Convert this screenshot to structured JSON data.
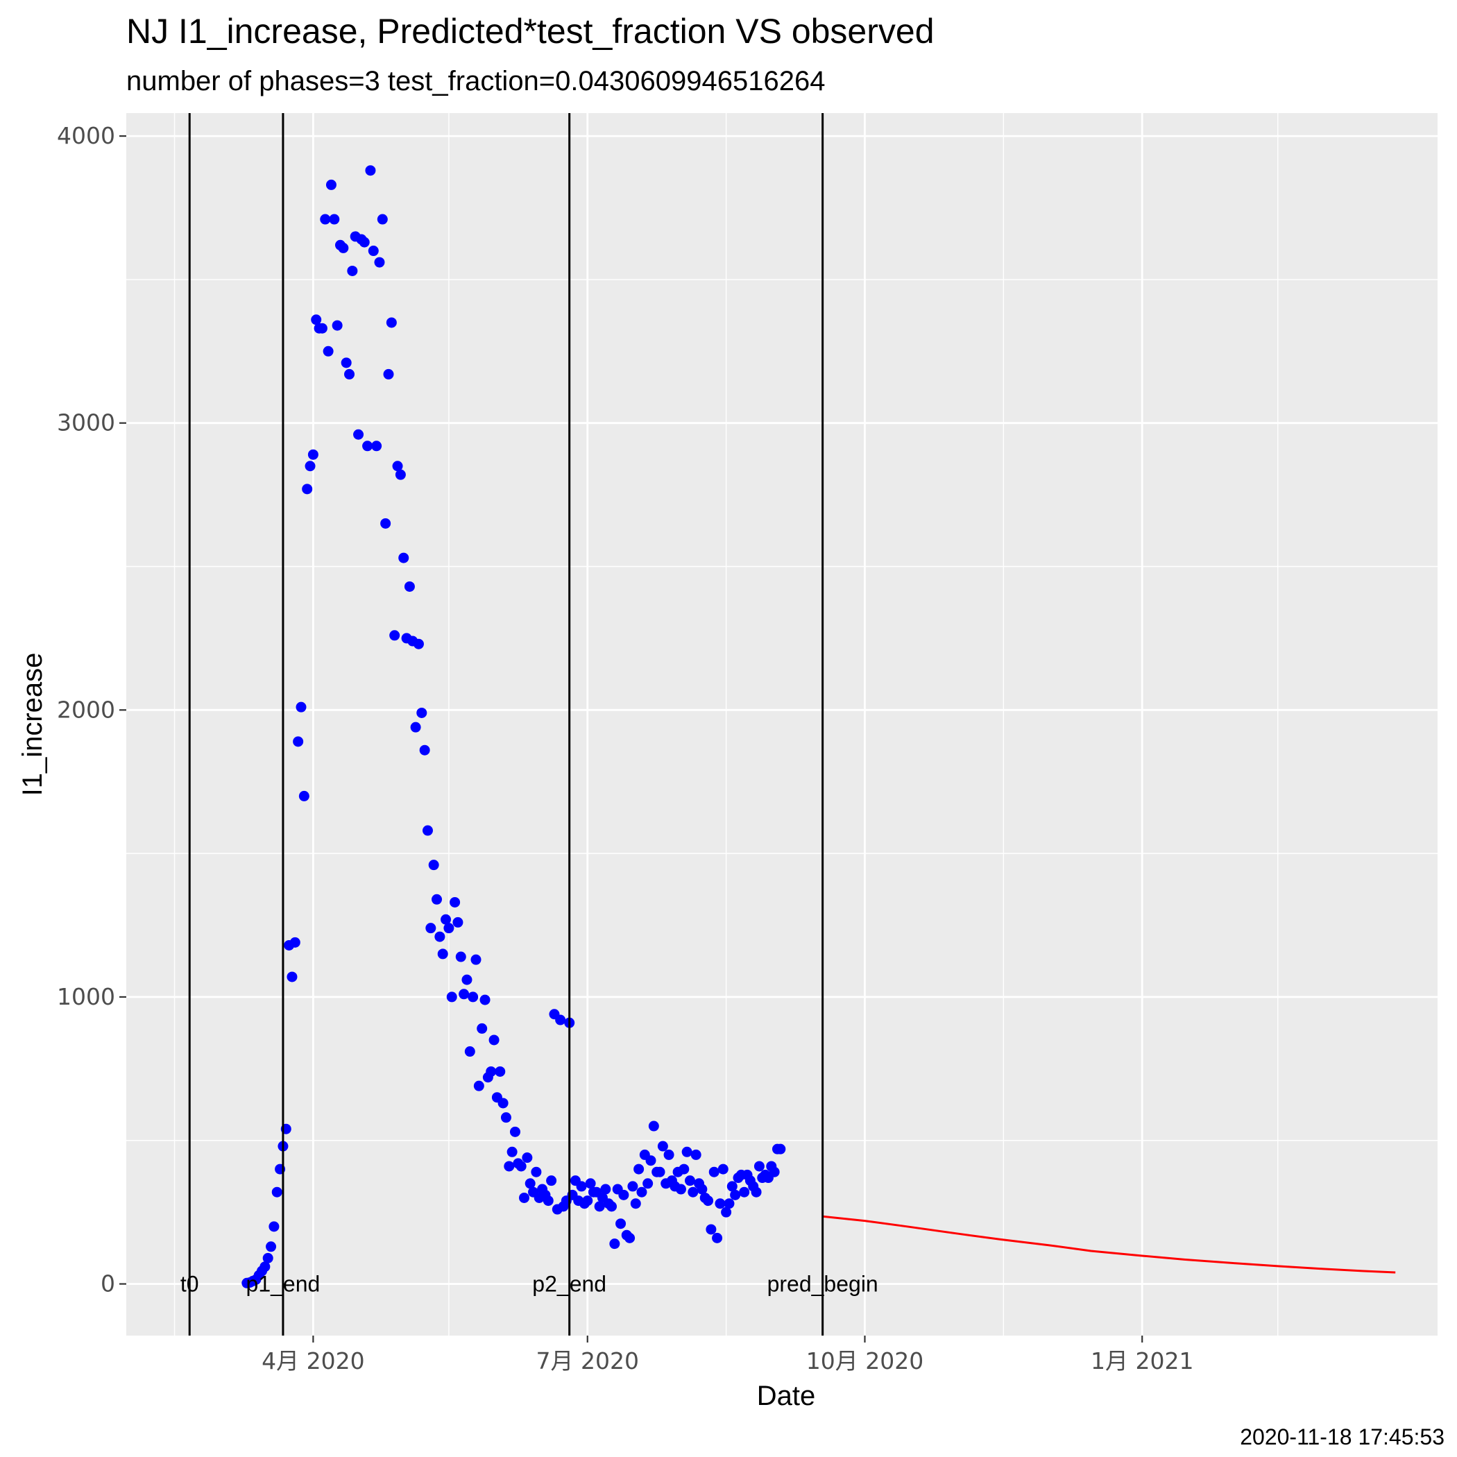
{
  "chart_data": {
    "type": "scatter",
    "title": "NJ I1_increase, Predicted*test_fraction VS observed",
    "subtitle": "number of phases=3   test_fraction=0.0430609946516264",
    "xlabel": "Date",
    "ylabel": "I1_increase",
    "caption": "2020-11-18 17:45:53",
    "xlim": [
      "2020-01-30",
      "2021-04-09"
    ],
    "ylim": [
      -180,
      4080
    ],
    "grid": true,
    "legend": "none",
    "x_ticks": [
      {
        "date": "2020-04-01",
        "label": "4月 2020"
      },
      {
        "date": "2020-07-01",
        "label": "7月 2020"
      },
      {
        "date": "2020-10-01",
        "label": "10月 2020"
      },
      {
        "date": "2021-01-01",
        "label": "1月 2021"
      }
    ],
    "x_minor_dates": [
      "2020-02-15",
      "2020-05-16",
      "2020-08-16",
      "2020-11-16",
      "2021-02-15"
    ],
    "y_ticks": [
      {
        "value": 0,
        "label": "0"
      },
      {
        "value": 1000,
        "label": "1000"
      },
      {
        "value": 2000,
        "label": "2000"
      },
      {
        "value": 3000,
        "label": "3000"
      },
      {
        "value": 4000,
        "label": "4000"
      }
    ],
    "y_minor": [
      500,
      1500,
      2500,
      3500
    ],
    "phase_lines": [
      {
        "date": "2020-02-20",
        "label": "t0"
      },
      {
        "date": "2020-03-22",
        "label": "p1_end"
      },
      {
        "date": "2020-06-25",
        "label": "p2_end"
      },
      {
        "date": "2020-09-17",
        "label": "pred_begin"
      }
    ],
    "colors": {
      "panel": "#EBEBEB",
      "grid": "#FFFFFF",
      "observed": "#0000FF",
      "predicted": "#FF0000",
      "vline": "#000000"
    },
    "series": [
      {
        "kind": "points",
        "start": "2020-03-10",
        "values": [
          3,
          5,
          10,
          15,
          30,
          45,
          60,
          90,
          130,
          200,
          320,
          400,
          480,
          540,
          1180,
          1070,
          1190,
          1890,
          2010,
          1700,
          2770,
          2850,
          2890,
          3360,
          3330,
          3330,
          3710,
          3250,
          3830,
          3710,
          3340,
          3620,
          3610,
          3210,
          3170,
          3530,
          3650,
          2960,
          3640,
          3630,
          2920,
          3880,
          3600,
          2920,
          3560,
          3710,
          2650,
          3170,
          3350,
          2260,
          2850,
          2820,
          2530,
          2250,
          2430,
          2240,
          1940,
          2230,
          1990,
          1860,
          1580,
          1240,
          1460,
          1340,
          1210,
          1150,
          1270,
          1240,
          1000,
          1330,
          1260,
          1140,
          1010,
          1060,
          810,
          1000,
          1130,
          690,
          890,
          990,
          720,
          740,
          850,
          650,
          740,
          630,
          580,
          410,
          460,
          530,
          420,
          410,
          300,
          440,
          350,
          320,
          390,
          300,
          330,
          310,
          290,
          360,
          940,
          260,
          920,
          270,
          290,
          910,
          310,
          360,
          290,
          340,
          280,
          290,
          350,
          320,
          320,
          270,
          300,
          330,
          280,
          270,
          140,
          330,
          210,
          310,
          170,
          160,
          340,
          280,
          400,
          320,
          450,
          350,
          430,
          550,
          390,
          390,
          480,
          350,
          450,
          360,
          340,
          390,
          330,
          400,
          460,
          360,
          320,
          450,
          350,
          330,
          300,
          290,
          190,
          390,
          160,
          280,
          400,
          250,
          280,
          340,
          310,
          370,
          380,
          320,
          380,
          360,
          340,
          320,
          410,
          370,
          380,
          370,
          410,
          390,
          470,
          470
        ]
      },
      {
        "kind": "line",
        "x": [
          "2020-09-17",
          "2020-10-01",
          "2020-10-15",
          "2020-11-01",
          "2020-11-15",
          "2020-12-01",
          "2020-12-15",
          "2021-01-01",
          "2021-01-15",
          "2021-02-01",
          "2021-02-15",
          "2021-03-01",
          "2021-03-15",
          "2021-03-26"
        ],
        "values": [
          235,
          220,
          200,
          175,
          155,
          135,
          115,
          98,
          85,
          72,
          62,
          53,
          45,
          40
        ]
      }
    ]
  }
}
